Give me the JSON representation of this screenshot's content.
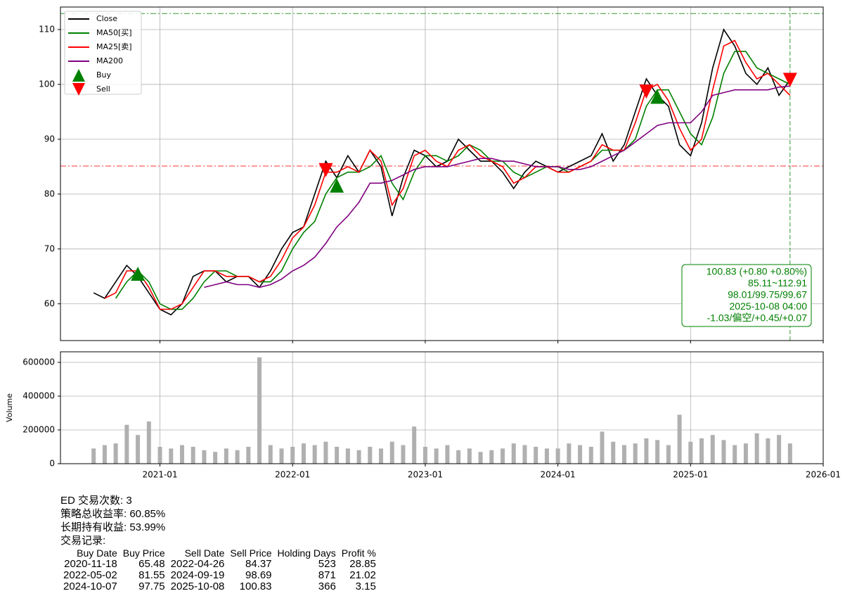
{
  "chart_data": [
    {
      "type": "line",
      "xlim": [
        "2020-04",
        "2026-01"
      ],
      "xticks": [
        "2021-01",
        "2022-01",
        "2023-01",
        "2024-01",
        "2025-01",
        "2026-01"
      ],
      "ylim": [
        53.3,
        114.1
      ],
      "yticks": [
        60,
        70,
        80,
        90,
        100,
        110
      ],
      "grid": true,
      "legend": "upper left",
      "x": [
        "2020-07",
        "2020-08",
        "2020-09",
        "2020-10",
        "2020-11",
        "2020-12",
        "2021-01",
        "2021-02",
        "2021-03",
        "2021-04",
        "2021-05",
        "2021-06",
        "2021-07",
        "2021-08",
        "2021-09",
        "2021-10",
        "2021-11",
        "2021-12",
        "2022-01",
        "2022-02",
        "2022-03",
        "2022-04",
        "2022-05",
        "2022-06",
        "2022-07",
        "2022-08",
        "2022-09",
        "2022-10",
        "2022-11",
        "2022-12",
        "2023-01",
        "2023-02",
        "2023-03",
        "2023-04",
        "2023-05",
        "2023-06",
        "2023-07",
        "2023-08",
        "2023-09",
        "2023-10",
        "2023-11",
        "2023-12",
        "2024-01",
        "2024-02",
        "2024-03",
        "2024-04",
        "2024-05",
        "2024-06",
        "2024-07",
        "2024-08",
        "2024-09",
        "2024-10",
        "2024-11",
        "2024-12",
        "2025-01",
        "2025-02",
        "2025-03",
        "2025-04",
        "2025-05",
        "2025-06",
        "2025-07",
        "2025-08",
        "2025-09",
        "2025-10"
      ],
      "series": [
        {
          "name": "Close",
          "color": "#000000",
          "values": [
            62,
            61,
            64,
            67,
            65,
            62,
            59,
            58,
            60,
            65,
            66,
            66,
            64,
            65,
            65,
            63,
            66,
            70,
            73,
            74,
            80,
            86,
            83,
            87,
            84,
            88,
            85,
            76,
            83,
            88,
            87,
            85,
            86,
            90,
            88,
            86,
            86,
            84,
            81,
            84,
            86,
            85,
            84,
            85,
            86,
            87,
            91,
            86,
            89,
            95,
            101,
            98,
            96,
            89,
            87,
            93,
            103,
            110,
            107,
            102,
            100,
            103,
            98,
            100.83
          ]
        },
        {
          "name": "MA50[买]",
          "color": "#008000",
          "values": [
            null,
            null,
            61,
            64,
            66,
            64,
            60,
            59,
            59,
            61,
            64,
            66,
            66,
            65,
            65,
            64,
            64,
            66,
            70,
            73,
            75,
            80,
            83,
            84,
            84,
            85,
            87,
            82,
            79,
            84,
            87,
            87,
            86,
            87,
            89,
            88,
            86,
            86,
            84,
            83,
            84,
            85,
            85,
            84,
            85,
            86,
            88,
            88,
            88,
            90,
            96,
            99,
            99,
            95,
            91,
            89,
            94,
            102,
            106,
            106,
            103,
            102,
            101,
            100
          ]
        },
        {
          "name": "MA25[卖]",
          "color": "#ff0000",
          "values": [
            null,
            61,
            62,
            66,
            66,
            63,
            59,
            59,
            60,
            63,
            66,
            66,
            65,
            65,
            65,
            64,
            65,
            68,
            72,
            74,
            78,
            84,
            84,
            85,
            84,
            88,
            86,
            78,
            81,
            87,
            88,
            86,
            85,
            88,
            89,
            87,
            86,
            85,
            82,
            83,
            85,
            85,
            84,
            84,
            85,
            86,
            89,
            88,
            88,
            93,
            99,
            100,
            97,
            92,
            88,
            90,
            99,
            107,
            108,
            104,
            101,
            102,
            100,
            98
          ]
        },
        {
          "name": "MA200",
          "color": "#800080",
          "values": [
            null,
            null,
            null,
            null,
            null,
            null,
            null,
            null,
            null,
            null,
            63,
            63.5,
            64,
            63.5,
            63.5,
            63,
            63.5,
            64.5,
            66,
            67,
            68.5,
            71,
            74,
            76,
            78.5,
            82,
            82,
            82.5,
            83.5,
            84.5,
            85,
            85,
            85,
            85.5,
            86,
            86.5,
            86.5,
            86,
            86,
            85.5,
            85,
            85,
            85,
            84.5,
            84.5,
            85,
            86,
            87,
            88,
            89.5,
            91,
            92.5,
            93,
            93,
            93,
            95,
            98,
            98.5,
            99,
            99,
            99,
            99,
            99.5,
            99.7
          ]
        }
      ],
      "markers": [
        {
          "name": "Buy",
          "color": "#008000",
          "shape": "up",
          "x": [
            "2020-11",
            "2022-05",
            "2024-10"
          ],
          "values": [
            65.48,
            81.55,
            97.75
          ]
        },
        {
          "name": "Sell",
          "color": "#ff0000",
          "shape": "down",
          "x": [
            "2022-04",
            "2024-09",
            "2025-10"
          ],
          "values": [
            84.37,
            98.69,
            100.83
          ]
        }
      ],
      "hlines": [
        {
          "value": 112.91,
          "color": "#008000"
        },
        {
          "value": 85.11,
          "color": "#ff0000"
        }
      ],
      "vline": {
        "x": "2025-10",
        "color": "#008000"
      },
      "annotation": [
        "100.83 (+0.80 +0.80%)",
        "85.11~112.91",
        "98.01/99.75/99.67",
        "2025-10-08 04:00",
        "-1.03/偏空/+0.45/+0.07"
      ]
    },
    {
      "type": "bar",
      "ylabel": "Volume",
      "ylim": [
        0,
        662500
      ],
      "yticks": [
        0,
        200000,
        400000,
        600000
      ],
      "grid": true,
      "color": "#b0b0b0",
      "values": [
        90000,
        110000,
        120000,
        230000,
        170000,
        250000,
        100000,
        90000,
        110000,
        100000,
        80000,
        70000,
        90000,
        80000,
        100000,
        630000,
        110000,
        90000,
        100000,
        120000,
        110000,
        130000,
        100000,
        90000,
        80000,
        100000,
        90000,
        130000,
        110000,
        220000,
        100000,
        90000,
        110000,
        80000,
        90000,
        70000,
        80000,
        90000,
        120000,
        110000,
        100000,
        90000,
        90000,
        120000,
        110000,
        100000,
        190000,
        130000,
        110000,
        120000,
        150000,
        140000,
        110000,
        290000,
        130000,
        150000,
        170000,
        140000,
        110000,
        120000,
        180000,
        150000,
        170000,
        120000
      ]
    }
  ],
  "report": {
    "lines": [
      "ED 交易次数: 3",
      "策略总收益率: 60.85%",
      "长期持有收益: 53.99%",
      "交易记录:"
    ],
    "table": {
      "header": [
        "Buy Date",
        "Buy Price",
        "Sell Date",
        "Sell Price",
        "Holding Days",
        "Profit %"
      ],
      "rows": [
        [
          "2020-11-18",
          "65.48",
          "2022-04-26",
          "84.37",
          "523",
          "28.85"
        ],
        [
          "2022-05-02",
          "81.55",
          "2024-09-19",
          "98.69",
          "871",
          "21.02"
        ],
        [
          "2024-10-07",
          "97.75",
          "2025-10-08",
          "100.83",
          "366",
          "3.15"
        ]
      ]
    }
  }
}
